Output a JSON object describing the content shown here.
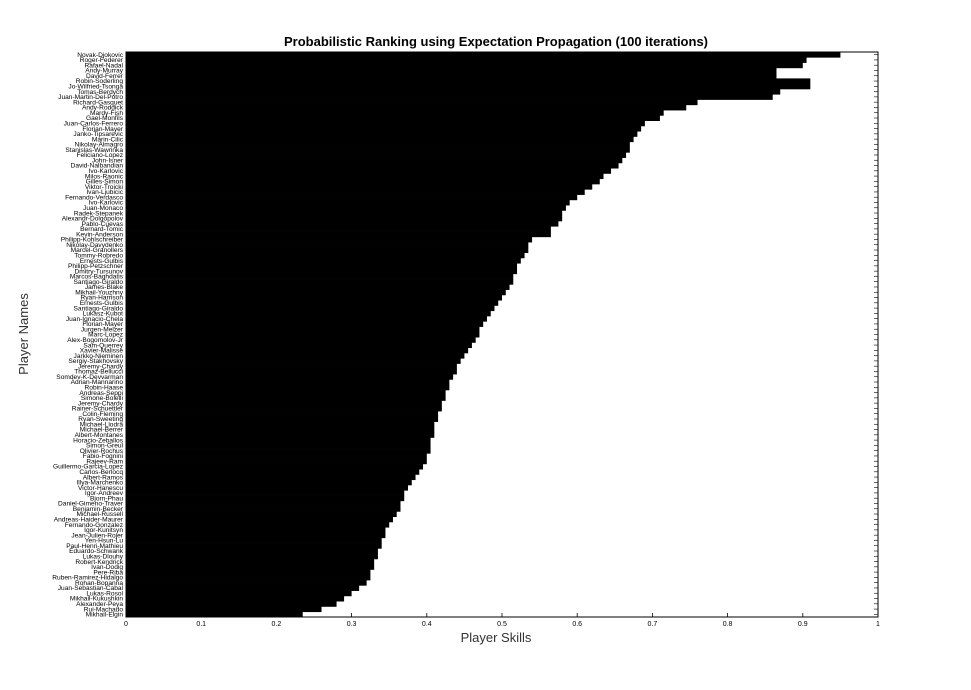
{
  "chart_data": {
    "type": "bar",
    "orientation": "horizontal",
    "title": "Probabilistic Ranking using Expectation Propagation (100 iterations)",
    "xlabel": "Player Skills",
    "ylabel": "Player Names",
    "xlim": [
      0,
      1
    ],
    "xticks": [
      0,
      0.1,
      0.2,
      0.3,
      0.4,
      0.5,
      0.6,
      0.7,
      0.8,
      0.9,
      1
    ],
    "grid": false,
    "bar_color": "#000000",
    "categories": [
      "Novak-Djokovic",
      "Roger-Federer",
      "Rafael-Nadal",
      "Andy-Murray",
      "David-Ferrer",
      "Robin-Soderling",
      "Jo-Wilfried-Tsonga",
      "Tomas-Berdych",
      "Juan-Martin-Del-Potro",
      "Richard-Gasquet",
      "Andy-Roddick",
      "Mardy-Fish",
      "Gael-Monfils",
      "Juan-Carlos-Ferrero",
      "Florian-Mayer",
      "Janko-Tipsarevic",
      "Marin-Cilic",
      "Nikolay-Almagro",
      "Stanislas-Wawrinka",
      "Feliciano-Lopez",
      "John-Isner",
      "David-Nalbandian",
      "Ivo-Karlovic",
      "Milos-Raonic",
      "Gilles-Simon",
      "Viktor-Troicki",
      "Ivan-Ljubicic",
      "Fernando-Verdasco",
      "Ivo-Karlovic",
      "Juan-Monaco",
      "Radek-Stepanek",
      "Alexandr-Dolgopolov",
      "Pablo-Cuevas",
      "Bernard-Tomic",
      "Kevin-Anderson",
      "Philipp-Kohlschreiber",
      "Nikolay-Davydenko",
      "Marcel-Granollers",
      "Tommy-Robredo",
      "Ernests-Gulbis",
      "Philipp-Petzschner",
      "Dmitry-Tursunov",
      "Marcos-Baghdatis",
      "Santiago-Giraldo",
      "James-Blake",
      "Mikhail-Youzhny",
      "Ryan-Harrison",
      "Ernests-Gulbis",
      "Santiago-Giraldo",
      "Lukasz-Kubot",
      "Juan-Ignacio-Chela",
      "Florian-Mayer",
      "Jurgen-Melzer",
      "Marc-Lopez",
      "Alex-Bogomolov-Jr",
      "Sam-Querrey",
      "Xavier-Malisse",
      "Jarkko-Nieminen",
      "Sergiy-Stakhovsky",
      "Jeremy-Chardy",
      "Thomaz-Bellucci",
      "Somdev-K-Devvarman",
      "Adrian-Mannarino",
      "Robin-Haase",
      "Andreas-Seppi",
      "Simone-Bolelli",
      "Jeremy-Chardy",
      "Rainer-Schuettler",
      "Colin-Fleming",
      "Ryan-Sweeting",
      "Michael-Llodra",
      "Michael-Berrer",
      "Albert-Montanes",
      "Horacio-Zeballos",
      "Simon-Greul",
      "Olivier-Rochus",
      "Fabio-Fognini",
      "Rajeev-Ram",
      "Guillermo-Garcia-Lopez",
      "Carlos-Berlocq",
      "Albert-Ramos",
      "Illya-Marchenko",
      "Victor-Hanescu",
      "Igor-Andreev",
      "Bjorn-Phau",
      "Daniel-Gimeno-Traver",
      "Benjamin-Becker",
      "Michael-Russell",
      "Andreas-Haider-Maurer",
      "Fernando-Gonzalez",
      "Igor-Kunitsyn",
      "Jean-Julien-Rojer",
      "Yen-Hsun-Lu",
      "Paul-Henri-Mathieu",
      "Eduardo-Schwank",
      "Lukas-Dlouhy",
      "Robert-Kendrick",
      "Ivan-Dodig",
      "Pere-Riba",
      "Ruben-Ramirez-Hidalgo",
      "Rohan-Bopanna",
      "Juan-Sebastian-Cabal",
      "Lukas-Rosol",
      "Mikhail-Kukushkin",
      "Alexander-Peya",
      "Rui-Machado",
      "Mikhail-Elgin"
    ],
    "values": [
      0.95,
      0.905,
      0.9,
      0.865,
      0.865,
      0.91,
      0.91,
      0.87,
      0.86,
      0.76,
      0.745,
      0.715,
      0.71,
      0.69,
      0.685,
      0.68,
      0.675,
      0.67,
      0.67,
      0.665,
      0.66,
      0.655,
      0.645,
      0.635,
      0.63,
      0.62,
      0.61,
      0.6,
      0.59,
      0.585,
      0.58,
      0.58,
      0.575,
      0.565,
      0.565,
      0.54,
      0.535,
      0.535,
      0.53,
      0.525,
      0.52,
      0.52,
      0.515,
      0.515,
      0.51,
      0.505,
      0.5,
      0.495,
      0.49,
      0.485,
      0.48,
      0.475,
      0.47,
      0.47,
      0.465,
      0.46,
      0.455,
      0.45,
      0.445,
      0.44,
      0.44,
      0.435,
      0.43,
      0.43,
      0.425,
      0.425,
      0.42,
      0.42,
      0.415,
      0.415,
      0.41,
      0.41,
      0.41,
      0.405,
      0.405,
      0.405,
      0.4,
      0.4,
      0.395,
      0.39,
      0.385,
      0.38,
      0.375,
      0.37,
      0.37,
      0.365,
      0.365,
      0.36,
      0.355,
      0.35,
      0.345,
      0.345,
      0.34,
      0.34,
      0.335,
      0.335,
      0.33,
      0.33,
      0.325,
      0.325,
      0.32,
      0.31,
      0.3,
      0.29,
      0.28,
      0.26,
      0.235
    ]
  }
}
